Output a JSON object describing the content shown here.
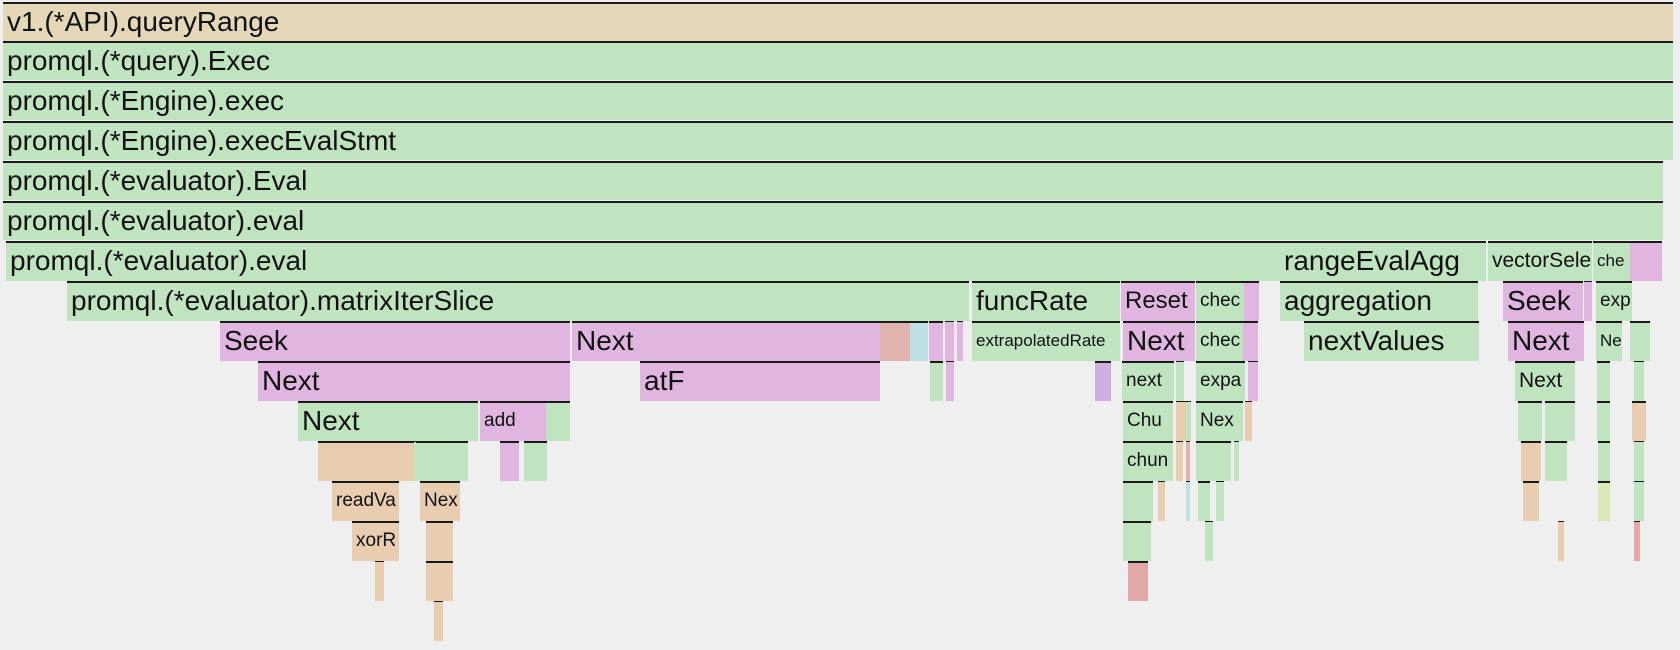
{
  "colors": {
    "api": "#e5d8b8",
    "go": "#bfe4bf",
    "runtime": "#e0b6e0",
    "tan": "#e8cdb0",
    "rose": "#e0b4ae",
    "blue": "#bde0e4",
    "purple": "#cfaee0",
    "red": "#e2a8a8",
    "lime": "#dbe8b8"
  },
  "frames": [
    {
      "label": "v1.(*API).queryRange",
      "color": "api"
    },
    {
      "label": "promql.(*query).Exec",
      "color": "go"
    },
    {
      "label": "promql.(*Engine).exec",
      "color": "go"
    },
    {
      "label": "promql.(*Engine).execEvalStmt",
      "color": "go"
    },
    {
      "label": "promql.(*evaluator).Eval",
      "color": "go"
    },
    {
      "label": "promql.(*evaluator).eval",
      "color": "go"
    },
    {
      "label": "promql.(*evaluator).eval",
      "color": "go"
    },
    {
      "label": "rangeEvalAgg",
      "color": "go"
    },
    {
      "label": "vectorSele",
      "color": "go"
    },
    {
      "label": "che",
      "color": "go"
    },
    {
      "label": "",
      "color": "runtime"
    },
    {
      "label": "promql.(*evaluator).matrixIterSlice",
      "color": "go"
    },
    {
      "label": "funcRate",
      "color": "go"
    },
    {
      "label": "Reset",
      "color": "runtime"
    },
    {
      "label": "chec",
      "color": "go"
    },
    {
      "label": "",
      "color": "runtime"
    },
    {
      "label": "aggregation",
      "color": "go"
    },
    {
      "label": "Seek",
      "color": "runtime"
    },
    {
      "label": "",
      "color": "runtime"
    },
    {
      "label": "exp",
      "color": "go"
    },
    {
      "label": "Seek",
      "color": "runtime"
    },
    {
      "label": "Next",
      "color": "runtime"
    },
    {
      "label": "",
      "color": "rose"
    },
    {
      "label": "",
      "color": "blue"
    },
    {
      "label": "",
      "color": "runtime"
    },
    {
      "label": "",
      "color": "runtime"
    },
    {
      "label": "",
      "color": "runtime"
    },
    {
      "label": "extrapolatedRate",
      "color": "go"
    },
    {
      "label": "Next",
      "color": "runtime"
    },
    {
      "label": "chec",
      "color": "go"
    },
    {
      "label": "",
      "color": "runtime"
    },
    {
      "label": "nextValues",
      "color": "go"
    },
    {
      "label": "Next",
      "color": "runtime"
    },
    {
      "label": "Ne",
      "color": "go"
    },
    {
      "label": "",
      "color": "go"
    },
    {
      "label": "Next",
      "color": "runtime"
    },
    {
      "label": "atF",
      "color": "runtime"
    },
    {
      "label": "",
      "color": "go"
    },
    {
      "label": "",
      "color": "runtime"
    },
    {
      "label": "",
      "color": "purple"
    },
    {
      "label": "next",
      "color": "go"
    },
    {
      "label": "",
      "color": "go"
    },
    {
      "label": "expa",
      "color": "go"
    },
    {
      "label": "",
      "color": "runtime"
    },
    {
      "label": "Next",
      "color": "go"
    },
    {
      "label": "",
      "color": "go"
    },
    {
      "label": "",
      "color": "go"
    },
    {
      "label": "Next",
      "color": "go"
    },
    {
      "label": "add",
      "color": "runtime"
    },
    {
      "label": "",
      "color": "go"
    },
    {
      "label": "Chu",
      "color": "go"
    },
    {
      "label": "",
      "color": "tan"
    },
    {
      "label": "",
      "color": "go"
    },
    {
      "label": "Nex",
      "color": "go"
    },
    {
      "label": "",
      "color": "tan"
    },
    {
      "label": "",
      "color": "go"
    },
    {
      "label": "",
      "color": "go"
    },
    {
      "label": "",
      "color": "go"
    },
    {
      "label": "Next",
      "color": "tan"
    },
    {
      "label": "",
      "color": "tan"
    },
    {
      "label": "Next",
      "color": "go"
    },
    {
      "label": "",
      "color": "go"
    },
    {
      "label": "",
      "color": "runtime"
    },
    {
      "label": "",
      "color": "go"
    },
    {
      "label": "chun",
      "color": "go"
    },
    {
      "label": "",
      "color": "tan"
    },
    {
      "label": "",
      "color": "rose"
    },
    {
      "label": "",
      "color": "go"
    },
    {
      "label": "",
      "color": "go"
    },
    {
      "label": "",
      "color": "tan"
    },
    {
      "label": "",
      "color": "go"
    },
    {
      "label": "",
      "color": "go"
    },
    {
      "label": "",
      "color": "go"
    },
    {
      "label": "readVa",
      "color": "tan"
    },
    {
      "label": "Nex",
      "color": "tan"
    },
    {
      "label": "",
      "color": "go"
    },
    {
      "label": "",
      "color": "tan"
    },
    {
      "label": "",
      "color": "blue"
    },
    {
      "label": "",
      "color": "go"
    },
    {
      "label": "",
      "color": "go"
    },
    {
      "label": "",
      "color": "tan"
    },
    {
      "label": "",
      "color": "lime"
    },
    {
      "label": "",
      "color": "go"
    },
    {
      "label": "xorR",
      "color": "tan"
    },
    {
      "label": "",
      "color": "tan"
    },
    {
      "label": "",
      "color": "go"
    },
    {
      "label": "",
      "color": "go"
    },
    {
      "label": "",
      "color": "tan"
    },
    {
      "label": "",
      "color": "red"
    },
    {
      "label": "",
      "color": "tan"
    },
    {
      "label": "",
      "color": "tan"
    },
    {
      "label": "",
      "color": "red"
    },
    {
      "label": "",
      "color": "tan"
    }
  ]
}
